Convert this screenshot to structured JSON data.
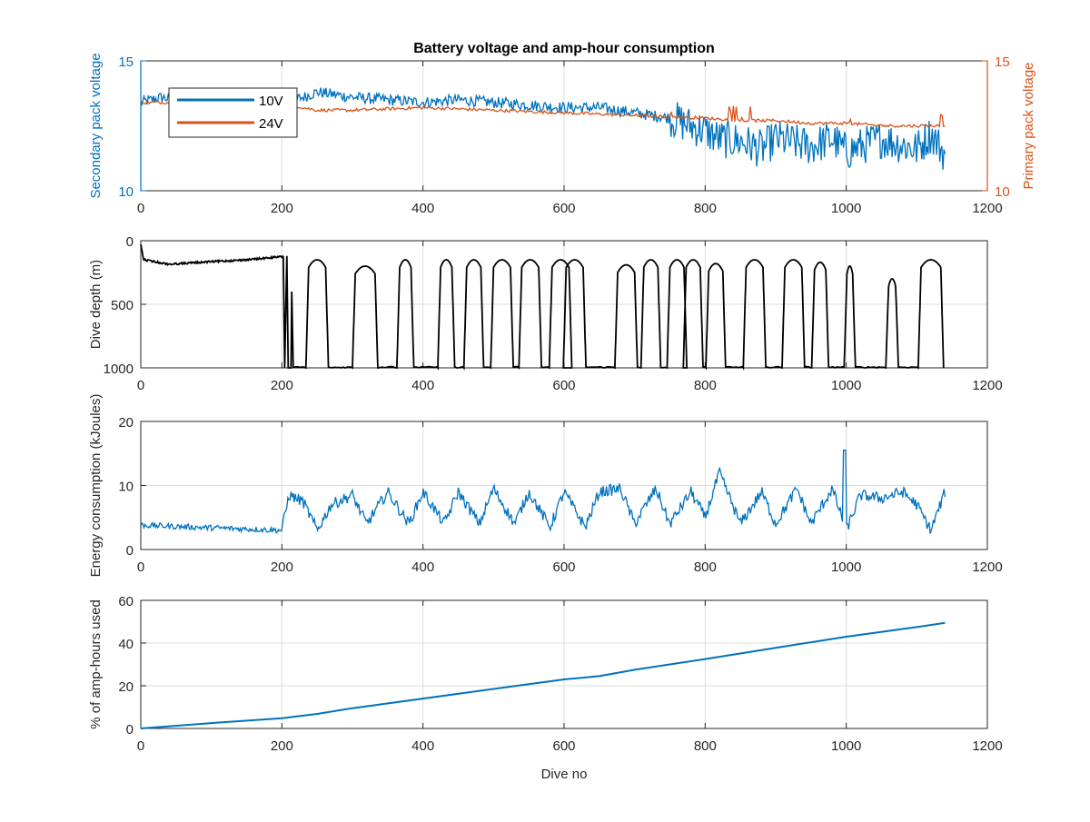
{
  "figure": {
    "title": "Battery voltage and amp-hour consumption"
  },
  "colors": {
    "series_10v": "#0072BD",
    "series_24v": "#D95319",
    "depth": "#000000",
    "energy": "#0072BD",
    "amp_hours": "#0072BD",
    "axis": "#262626",
    "grid": "#dcdcdc"
  },
  "chart_data": [
    {
      "type": "line",
      "title": "Battery voltage and amp-hour consumption",
      "xlabel": "",
      "ylabel": "Secondary pack voltage",
      "ylabel_right": "Primary pack voltage",
      "xlim": [
        0,
        1200
      ],
      "ylim": [
        10,
        15
      ],
      "ylim_right": [
        10,
        15
      ],
      "xticks": [
        "0",
        "200",
        "400",
        "600",
        "800",
        "1000",
        "1200"
      ],
      "yticks": [
        "10",
        "15"
      ],
      "yticks_right": [
        "10",
        "15"
      ],
      "grid": true,
      "legend": "top-left",
      "series": [
        {
          "name": "10V",
          "axis": "left",
          "x": [
            0,
            30,
            60,
            100,
            150,
            200,
            230,
            250,
            300,
            350,
            400,
            450,
            500,
            550,
            600,
            650,
            700,
            750,
            780,
            800,
            820,
            850,
            880,
            900,
            950,
            980,
            1000,
            1050,
            1100,
            1120,
            1140
          ],
          "y": [
            13.4,
            13.6,
            13.4,
            13.5,
            13.5,
            13.4,
            13.6,
            13.8,
            13.6,
            13.5,
            13.4,
            13.5,
            13.4,
            13.3,
            13.2,
            13.2,
            13.0,
            12.8,
            12.5,
            12.3,
            12.0,
            11.9,
            11.6,
            12.0,
            11.7,
            12.0,
            11.5,
            12.0,
            11.6,
            12.2,
            11.4
          ]
        },
        {
          "name": "24V",
          "axis": "right",
          "x": [
            0,
            100,
            200,
            230,
            250,
            300,
            400,
            500,
            600,
            700,
            800,
            850,
            900,
            950,
            1000,
            1050,
            1100,
            1140
          ],
          "y": [
            13.4,
            13.4,
            13.4,
            13.2,
            13.1,
            13.1,
            13.2,
            13.1,
            13.0,
            12.9,
            12.8,
            12.7,
            12.7,
            12.6,
            12.6,
            12.5,
            12.5,
            12.5
          ]
        }
      ]
    },
    {
      "type": "line",
      "title": "",
      "xlabel": "",
      "ylabel": "Dive depth (m)",
      "xlim": [
        0,
        1200
      ],
      "ylim": [
        0,
        1000
      ],
      "y_reversed": true,
      "xticks": [
        "0",
        "200",
        "400",
        "600",
        "800",
        "1000",
        "1200"
      ],
      "yticks": [
        "0",
        "500",
        "1000"
      ],
      "grid": true,
      "dive_peaks": {
        "x": [
          250,
          318,
          375,
          433,
          472,
          512,
          552,
          595,
          615,
          688,
          723,
          760,
          783,
          815,
          870,
          925,
          963,
          1005,
          1065,
          1120
        ],
        "min_depth_m": [
          150,
          200,
          150,
          150,
          150,
          150,
          150,
          150,
          150,
          190,
          150,
          150,
          150,
          180,
          150,
          150,
          170,
          200,
          300,
          150
        ]
      },
      "series": [
        {
          "name": "",
          "x": [
            0,
            5,
            30,
            100,
            200,
            205,
            215,
            230,
            400,
            500,
            600,
            700,
            800,
            900,
            1000,
            1100,
            1140
          ],
          "y": [
            30,
            150,
            180,
            160,
            120,
            1000,
            1000,
            1000,
            1000,
            1000,
            1000,
            1000,
            1000,
            1000,
            1000,
            1000,
            1000
          ]
        }
      ]
    },
    {
      "type": "line",
      "title": "",
      "xlabel": "",
      "ylabel": "Energy consumption (kJoules)",
      "xlim": [
        0,
        1200
      ],
      "ylim": [
        0,
        20
      ],
      "xticks": [
        "0",
        "200",
        "400",
        "600",
        "800",
        "1000",
        "1200"
      ],
      "yticks": [
        "0",
        "10",
        "20"
      ],
      "grid": true,
      "series": [
        {
          "name": "",
          "x": [
            0,
            50,
            100,
            150,
            200,
            210,
            230,
            250,
            270,
            300,
            320,
            350,
            380,
            400,
            430,
            450,
            480,
            500,
            530,
            550,
            580,
            600,
            630,
            650,
            680,
            700,
            730,
            750,
            780,
            800,
            820,
            850,
            880,
            900,
            930,
            950,
            980,
            1000,
            1020,
            1050,
            1080,
            1100,
            1120,
            1140
          ],
          "y": [
            3.8,
            3.6,
            3.4,
            3.2,
            3.0,
            8.5,
            7.5,
            3.0,
            7.0,
            8.5,
            4.0,
            9.0,
            4.0,
            9.0,
            4.0,
            9.0,
            4.0,
            9.5,
            4.0,
            9.0,
            3.5,
            9.0,
            3.5,
            9.0,
            9.5,
            4.0,
            9.5,
            4.0,
            9.0,
            5.0,
            12.0,
            4.0,
            9.0,
            4.0,
            9.5,
            4.0,
            9.5,
            3.0,
            8.5,
            8.0,
            9.0,
            7.0,
            3.0,
            9.0
          ]
        }
      ]
    },
    {
      "type": "line",
      "title": "",
      "xlabel": "Dive no",
      "ylabel": "% of amp-hours used",
      "xlim": [
        0,
        1200
      ],
      "ylim": [
        0,
        60
      ],
      "xticks": [
        "0",
        "200",
        "400",
        "600",
        "800",
        "1000",
        "1200"
      ],
      "yticks": [
        "0",
        "20",
        "40",
        "60"
      ],
      "grid": true,
      "series": [
        {
          "name": "",
          "x": [
            0,
            100,
            200,
            250,
            300,
            400,
            500,
            600,
            650,
            700,
            800,
            900,
            1000,
            1100,
            1140
          ],
          "y": [
            0,
            2.5,
            4.8,
            6.8,
            9.5,
            14.0,
            18.5,
            23.0,
            24.5,
            27.5,
            32.5,
            37.8,
            43.0,
            47.5,
            49.5
          ]
        }
      ]
    }
  ]
}
